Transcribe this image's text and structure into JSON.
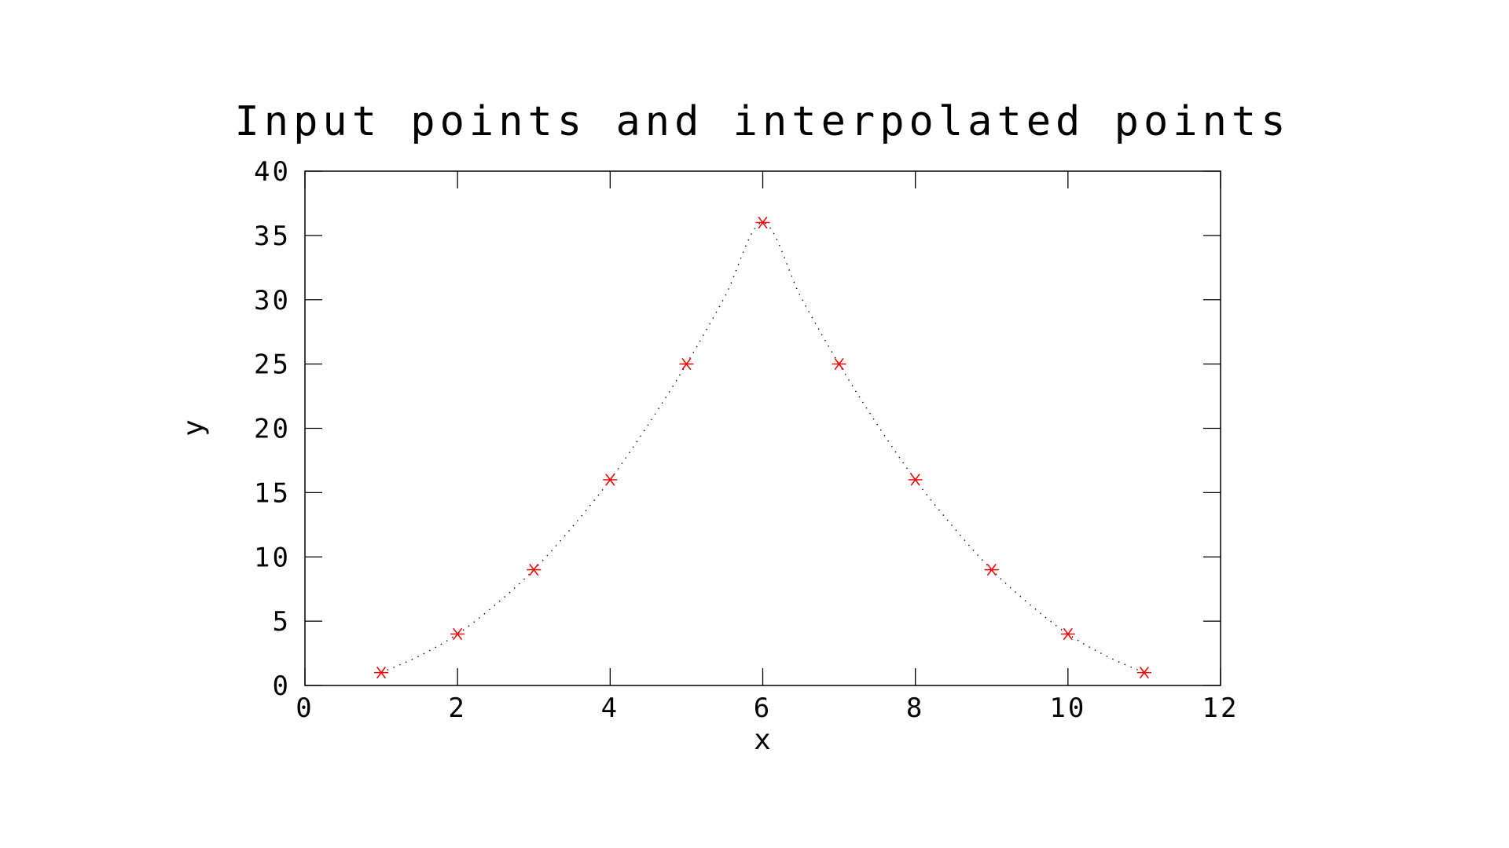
{
  "chart_data": {
    "type": "scatter",
    "title": "Input points and interpolated points",
    "xlabel": "x",
    "ylabel": "y",
    "xlim": [
      0,
      12
    ],
    "ylim": [
      0,
      40
    ],
    "x_ticks": [
      "0",
      "2",
      "4",
      "6",
      "8",
      "10",
      "12"
    ],
    "y_ticks": [
      "0",
      "5",
      "10",
      "15",
      "20",
      "25",
      "30",
      "35",
      "40"
    ],
    "grid": false,
    "legend": "none",
    "series": [
      {
        "style": "asterisk-markers",
        "color": "#ff0000",
        "x": [
          1,
          2,
          3,
          4,
          5,
          6,
          7,
          8,
          9,
          10,
          11
        ],
        "y": [
          1,
          4,
          9,
          16,
          25,
          36,
          25,
          16,
          9,
          4,
          1
        ]
      },
      {
        "style": "dotted-line",
        "color": "#000000",
        "x": [
          1,
          1.5,
          2,
          2.5,
          3,
          3.5,
          4,
          4.5,
          5,
          5.5,
          6,
          6.5,
          7,
          7.5,
          8,
          8.5,
          9,
          9.5,
          10,
          10.5,
          11
        ],
        "y": [
          1,
          2.3,
          4,
          6.3,
          9,
          12.3,
          16,
          20.3,
          25,
          30.2,
          36,
          30.2,
          25,
          20.3,
          16,
          12.3,
          9,
          6.3,
          4,
          2.3,
          1
        ]
      }
    ]
  }
}
